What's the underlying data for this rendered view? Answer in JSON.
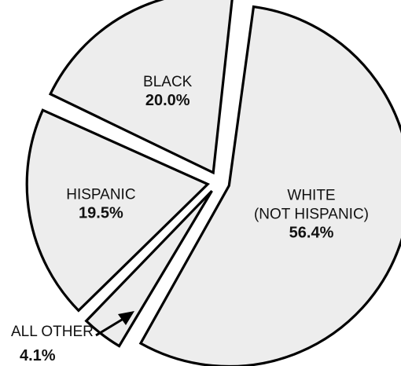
{
  "chart_data": {
    "type": "pie",
    "title": "",
    "colors": {
      "slice_fill": "#ededed",
      "outline": "#000000"
    },
    "slices": [
      {
        "label_lines": [
          "WHITE",
          "(NOT HISPANIC)"
        ],
        "value": 56.4,
        "value_label": "56.4%"
      },
      {
        "label_lines": [
          "ALL OTHER"
        ],
        "value": 4.1,
        "value_label": "4.1%"
      },
      {
        "label_lines": [
          "HISPANIC"
        ],
        "value": 19.5,
        "value_label": "19.5%"
      },
      {
        "label_lines": [
          "BLACK"
        ],
        "value": 20.0,
        "value_label": "20.0%"
      }
    ]
  }
}
